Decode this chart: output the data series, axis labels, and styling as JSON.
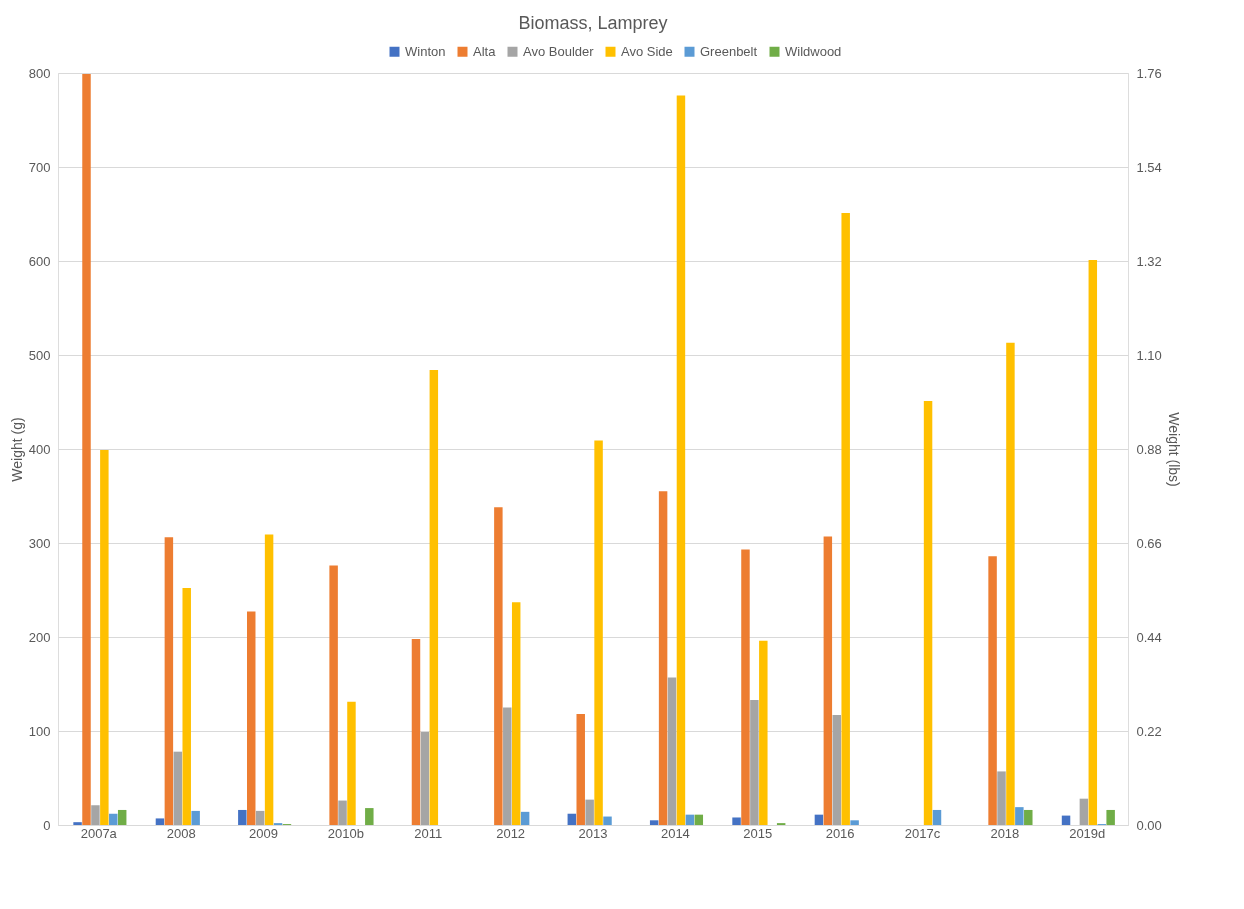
{
  "chart_data": {
    "type": "bar",
    "title": "Biomass, Lamprey",
    "ylabel": "Weight (g)",
    "y2label": "Weight (lbs)",
    "categories": [
      "2007a",
      "2008",
      "2009",
      "2010b",
      "2011",
      "2012",
      "2013",
      "2014",
      "2015",
      "2016",
      "2017c",
      "2018",
      "2019d"
    ],
    "series": [
      {
        "name": "Winton",
        "color": "#4472c4",
        "values": [
          3,
          7,
          16,
          null,
          null,
          null,
          12,
          5,
          8,
          11,
          null,
          null,
          10
        ]
      },
      {
        "name": "Alta",
        "color": "#ed7d31",
        "values": [
          799,
          306,
          227,
          276,
          198,
          338,
          118,
          355,
          293,
          307,
          null,
          286,
          null
        ]
      },
      {
        "name": "Avo Boulder",
        "color": "#a5a5a5",
        "values": [
          21,
          78,
          15,
          26,
          99,
          125,
          27,
          157,
          133,
          117,
          null,
          57,
          28
        ]
      },
      {
        "name": "Avo Side",
        "color": "#ffc000",
        "values": [
          399,
          252,
          309,
          131,
          484,
          237,
          409,
          776,
          196,
          651,
          451,
          513,
          601
        ]
      },
      {
        "name": "Greenbelt",
        "color": "#5b9bd5",
        "values": [
          12,
          15,
          2,
          null,
          null,
          14,
          9,
          11,
          null,
          5,
          16,
          19,
          1
        ]
      },
      {
        "name": "Wildwood",
        "color": "#70ad47",
        "values": [
          16,
          null,
          1,
          18,
          null,
          null,
          null,
          11,
          2,
          null,
          null,
          16,
          16
        ]
      }
    ],
    "ylim": [
      0,
      800
    ],
    "yticks": [
      0,
      100,
      200,
      300,
      400,
      500,
      600,
      700,
      800
    ],
    "y2lim": [
      0,
      1.76
    ],
    "y2ticks": [
      {
        "value": 0,
        "label": "0.00"
      },
      0.22,
      0.44,
      0.66,
      0.88,
      {
        "value": 1.1,
        "label": "1.10"
      },
      1.32,
      1.54,
      1.76
    ],
    "grid": "y",
    "legend": "top"
  }
}
